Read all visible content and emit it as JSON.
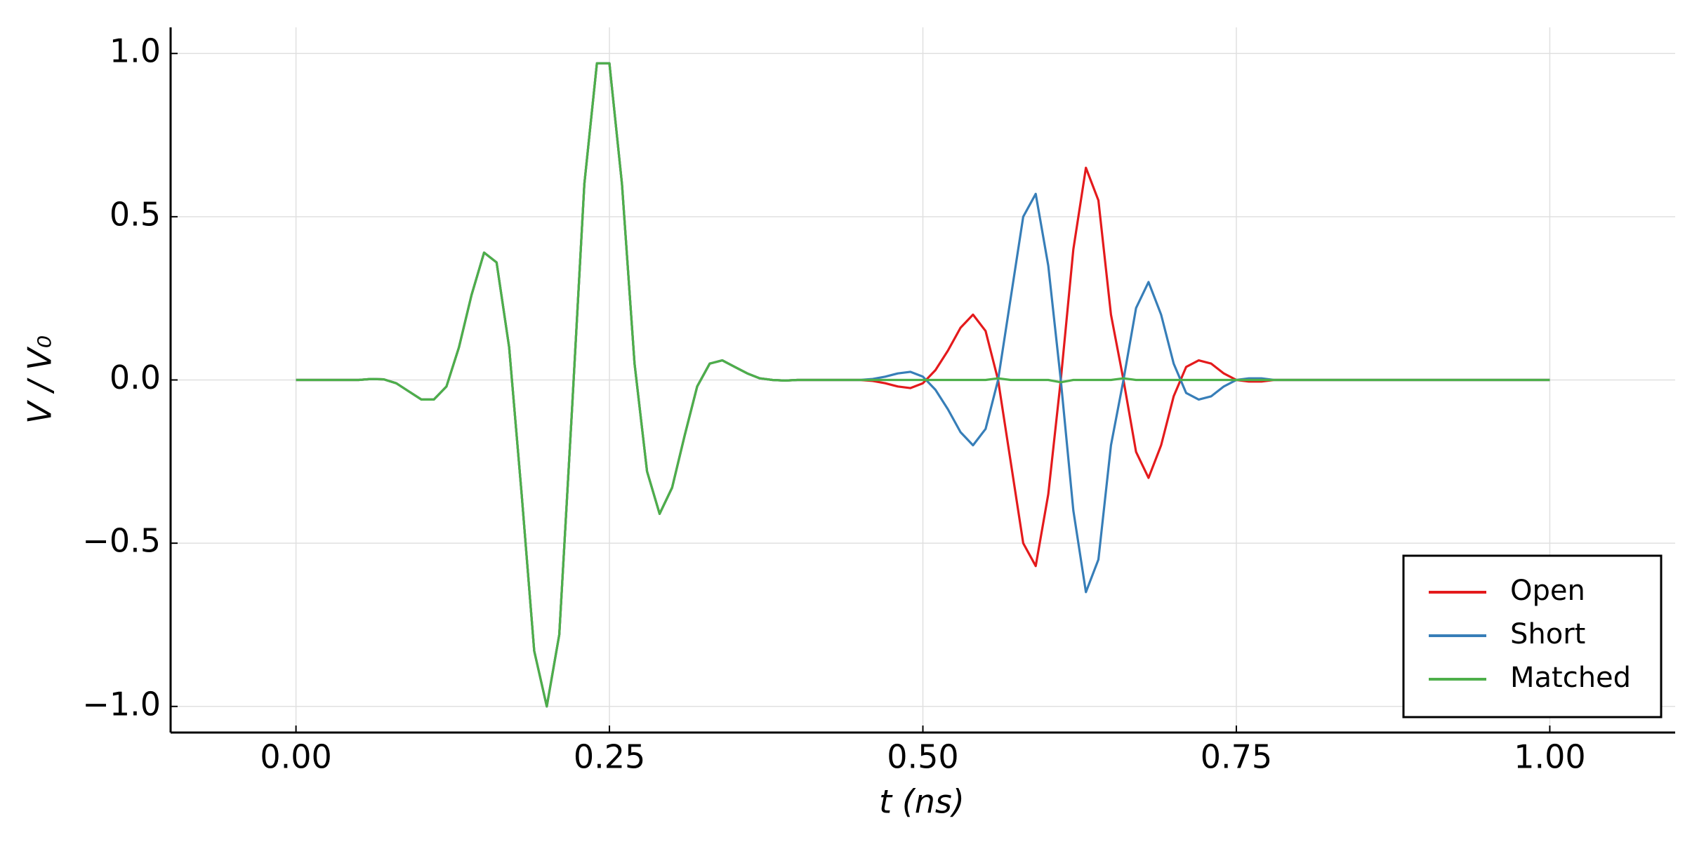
{
  "chart_data": {
    "type": "line",
    "xlabel": "t  (ns)",
    "ylabel": "V / V₀",
    "x": [
      0,
      0.01,
      0.02,
      0.03,
      0.04,
      0.05,
      0.06,
      0.07,
      0.08,
      0.09,
      0.1,
      0.11,
      0.12,
      0.13,
      0.14,
      0.15,
      0.16,
      0.17,
      0.18,
      0.19,
      0.2,
      0.21,
      0.22,
      0.23,
      0.24,
      0.25,
      0.26,
      0.27,
      0.28,
      0.29,
      0.3,
      0.31,
      0.32,
      0.33,
      0.34,
      0.35,
      0.36,
      0.37,
      0.38,
      0.39,
      0.4,
      0.41,
      0.42,
      0.43,
      0.44,
      0.45,
      0.46,
      0.47,
      0.48,
      0.49,
      0.5,
      0.51,
      0.52,
      0.53,
      0.54,
      0.55,
      0.56,
      0.57,
      0.58,
      0.59,
      0.6,
      0.61,
      0.62,
      0.63,
      0.64,
      0.65,
      0.66,
      0.67,
      0.68,
      0.69,
      0.7,
      0.71,
      0.72,
      0.73,
      0.74,
      0.75,
      0.76,
      0.77,
      0.78,
      0.79,
      0.8,
      0.81,
      0.82,
      0.83,
      0.84,
      0.85,
      0.86,
      0.87,
      0.88,
      0.89,
      0.9,
      0.91,
      0.92,
      0.93,
      0.94,
      0.95,
      0.96,
      0.97,
      0.98,
      0.99,
      1
    ],
    "series": [
      {
        "name": "Open",
        "color": "#e41a1c",
        "values": [
          0,
          0,
          0,
          0,
          0,
          0,
          0.003,
          0.002,
          -0.01,
          -0.035,
          -0.06,
          -0.06,
          -0.02,
          0.1,
          0.26,
          0.39,
          0.36,
          0.1,
          -0.35,
          -0.83,
          -1.0,
          -0.78,
          -0.1,
          0.6,
          0.97,
          0.97,
          0.6,
          0.05,
          -0.28,
          -0.41,
          -0.33,
          -0.17,
          -0.02,
          0.05,
          0.06,
          0.04,
          0.02,
          0.005,
          0,
          -0.002,
          0,
          0,
          0,
          0,
          0,
          0,
          -0.003,
          -0.01,
          -0.02,
          -0.025,
          -0.01,
          0.03,
          0.09,
          0.16,
          0.2,
          0.15,
          0,
          -0.25,
          -0.5,
          -0.57,
          -0.35,
          0,
          0.4,
          0.65,
          0.55,
          0.2,
          0,
          -0.22,
          -0.3,
          -0.2,
          -0.05,
          0.04,
          0.06,
          0.05,
          0.02,
          0,
          -0.005,
          -0.005,
          0,
          0,
          0,
          0,
          0,
          0,
          0,
          0,
          0,
          0,
          0,
          0,
          0,
          0,
          0,
          0,
          0,
          0,
          0,
          0,
          0,
          0,
          0
        ]
      },
      {
        "name": "Short",
        "color": "#377eb8",
        "values": [
          0,
          0,
          0,
          0,
          0,
          0,
          0.003,
          0.002,
          -0.01,
          -0.035,
          -0.06,
          -0.06,
          -0.02,
          0.1,
          0.26,
          0.39,
          0.36,
          0.1,
          -0.35,
          -0.83,
          -1.0,
          -0.78,
          -0.1,
          0.6,
          0.97,
          0.97,
          0.6,
          0.05,
          -0.28,
          -0.41,
          -0.33,
          -0.17,
          -0.02,
          0.05,
          0.06,
          0.04,
          0.02,
          0.005,
          0,
          -0.002,
          0,
          0,
          0,
          0,
          0,
          0,
          0.003,
          0.01,
          0.02,
          0.025,
          0.01,
          -0.03,
          -0.09,
          -0.16,
          -0.2,
          -0.15,
          0,
          0.25,
          0.5,
          0.57,
          0.35,
          0,
          -0.4,
          -0.65,
          -0.55,
          -0.2,
          0,
          0.22,
          0.3,
          0.2,
          0.05,
          -0.04,
          -0.06,
          -0.05,
          -0.02,
          0,
          0.005,
          0.005,
          0,
          0,
          0,
          0,
          0,
          0,
          0,
          0,
          0,
          0,
          0,
          0,
          0,
          0,
          0,
          0,
          0,
          0,
          0,
          0,
          0,
          0,
          0
        ]
      },
      {
        "name": "Matched",
        "color": "#4daf4a",
        "values": [
          0,
          0,
          0,
          0,
          0,
          0,
          0.003,
          0.002,
          -0.01,
          -0.035,
          -0.06,
          -0.06,
          -0.02,
          0.1,
          0.26,
          0.39,
          0.36,
          0.1,
          -0.35,
          -0.83,
          -1.0,
          -0.78,
          -0.1,
          0.6,
          0.97,
          0.97,
          0.6,
          0.05,
          -0.28,
          -0.41,
          -0.33,
          -0.17,
          -0.02,
          0.05,
          0.06,
          0.04,
          0.02,
          0.005,
          0,
          -0.002,
          0,
          0,
          0,
          0,
          0,
          0,
          0,
          0,
          0,
          0,
          0,
          0,
          0,
          0,
          0,
          0,
          0.005,
          0,
          0,
          0,
          0,
          -0.007,
          0,
          0,
          0,
          0,
          0.005,
          0,
          0,
          0,
          0,
          0,
          0,
          0,
          0,
          0,
          0,
          0,
          0,
          0,
          0,
          0,
          0,
          0,
          0,
          0,
          0,
          0,
          0,
          0,
          0,
          0,
          0,
          0,
          0,
          0,
          0,
          0,
          0,
          0,
          0
        ]
      }
    ],
    "xlim": [
      -0.1,
      1.1
    ],
    "ylim": [
      -1.08,
      1.08
    ],
    "xticks": [
      {
        "value": 0,
        "label": "0.00"
      },
      0.25,
      {
        "value": 0.5,
        "label": "0.50"
      },
      0.75,
      {
        "value": 1,
        "label": "1.00"
      }
    ],
    "yticks": [
      {
        "value": -1,
        "label": "−1.0"
      },
      {
        "value": -0.5,
        "label": "−0.5"
      },
      {
        "value": 0,
        "label": "0.0"
      },
      0.5,
      {
        "value": 1,
        "label": "1.0"
      }
    ],
    "grid": true,
    "legend": "lower right"
  }
}
